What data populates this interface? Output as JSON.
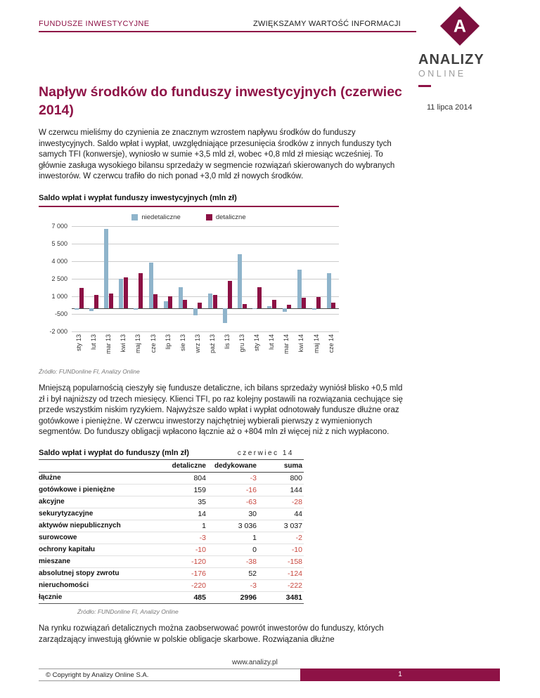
{
  "header": {
    "left": "FUNDUSZE INWESTYCYJNE",
    "center": "ZWIĘKSZAMY WARTOŚĆ INFORMACJI"
  },
  "logo": {
    "letter": "A",
    "brand": "ANALIZY",
    "sub": "ONLINE"
  },
  "date": "11 lipca 2014",
  "title": "Napływ środków do funduszy inwestycyjnych (czerwiec 2014)",
  "paragraphs": {
    "p1": "W czerwcu mieliśmy do czynienia ze znacznym wzrostem napływu środków do funduszy inwestycyjnych. Saldo wpłat i wypłat, uwzględniające przesunięcia środków z innych funduszy tych samych TFI (konwersje), wyniosło w sumie +3,5 mld zł, wobec +0,8 mld zł miesiąc wcześniej. To głównie zasługa wysokiego bilansu sprzedaży w segmencie rozwiązań skierowanych do wybranych inwestorów. W czerwcu trafiło do nich ponad +3,0 mld zł nowych środków.",
    "p2": "Mniejszą popularnością cieszyły się fundusze detaliczne, ich bilans sprzedaży wyniósł blisko +0,5 mld zł i był najniższy od trzech miesięcy. Klienci TFI, po raz kolejny postawili na rozwiązania cechujące się przede wszystkim niskim ryzykiem. Najwyższe saldo wpłat i wypłat odnotowały fundusze dłużne oraz gotówkowe i pieniężne. W czerwcu inwestorzy najchętniej wybierali pierwszy z wymienionych segmentów. Do funduszy obligacji wpłacono łącznie aż o +804 mln zł więcej niż z nich wypłacono.",
    "p3": "Na rynku rozwiązań detalicznych można zaobserwować powrót inwestorów do funduszy, których zarządzający inwestują głównie w polskie obligacje skarbowe. Rozwiązania dłużne"
  },
  "chart_data": {
    "type": "bar",
    "title": "Saldo wpłat i wypłat funduszy inwestycyjnych (mln zł)",
    "categories": [
      "sty 13",
      "lut 13",
      "mar 13",
      "kwi 13",
      "maj 13",
      "cze 13",
      "lip 13",
      "sie 13",
      "wrz 13",
      "paź 13",
      "lis 13",
      "gru 13",
      "sty 14",
      "lut 14",
      "mar 14",
      "kwi 14",
      "maj 14",
      "cze 14"
    ],
    "series": [
      {
        "name": "niedetaliczne",
        "color": "#8FB4CB",
        "values": [
          -150,
          -250,
          6750,
          2500,
          -150,
          3850,
          600,
          1800,
          -650,
          1250,
          -1300,
          4600,
          -100,
          150,
          -350,
          3300,
          -150,
          3000
        ]
      },
      {
        "name": "detaliczne",
        "color": "#8C1044",
        "values": [
          1700,
          1100,
          1250,
          2600,
          2950,
          1150,
          1000,
          700,
          450,
          1100,
          2300,
          350,
          1750,
          700,
          300,
          900,
          950,
          485
        ]
      }
    ],
    "ylim": [
      -2000,
      7000
    ],
    "yticks": [
      7000,
      5500,
      4000,
      2500,
      1000,
      -500,
      -2000
    ],
    "ytick_labels": [
      "7 000",
      "5 500",
      "4 000",
      "2 500",
      "1 000",
      "-500",
      "-2 000"
    ],
    "grid": true,
    "legend_position": "top",
    "source": "Źródło: FUNDonline FI, Analizy Online"
  },
  "table": {
    "title": "Saldo wpłat i wypłat do funduszy (mln zł)",
    "period": "czerwiec 14",
    "columns": [
      "detaliczne",
      "dedykowane",
      "suma"
    ],
    "rows": [
      {
        "label": "dłużne",
        "values": [
          "804",
          "-3",
          "800"
        ]
      },
      {
        "label": "gotówkowe i pieniężne",
        "values": [
          "159",
          "-16",
          "144"
        ]
      },
      {
        "label": "akcyjne",
        "values": [
          "35",
          "-63",
          "-28"
        ]
      },
      {
        "label": "sekurytyzacyjne",
        "values": [
          "14",
          "30",
          "44"
        ]
      },
      {
        "label": "aktywów niepublicznych",
        "values": [
          "1",
          "3 036",
          "3 037"
        ]
      },
      {
        "label": "surowcowe",
        "values": [
          "-3",
          "1",
          "-2"
        ]
      },
      {
        "label": "ochrony kapitału",
        "values": [
          "-10",
          "0",
          "-10"
        ]
      },
      {
        "label": "mieszane",
        "values": [
          "-120",
          "-38",
          "-158"
        ]
      },
      {
        "label": "absolutnej stopy zwrotu",
        "values": [
          "-176",
          "52",
          "-124"
        ]
      },
      {
        "label": "nieruchomości",
        "values": [
          "-220",
          "-3",
          "-222"
        ]
      }
    ],
    "total": {
      "label": "łącznie",
      "values": [
        "485",
        "2996",
        "3481"
      ]
    },
    "source": "Źródło: FUNDonline FI, Analizy Online"
  },
  "footer": {
    "copyright": "© Copyright by Analizy Online S.A.",
    "url": "www.analizy.pl",
    "page": "1"
  },
  "colors": {
    "brand": "#8E1246",
    "bar_niedetaliczne": "#8FB4CB",
    "bar_detaliczne": "#8C1044",
    "negative": "#C8473F"
  }
}
